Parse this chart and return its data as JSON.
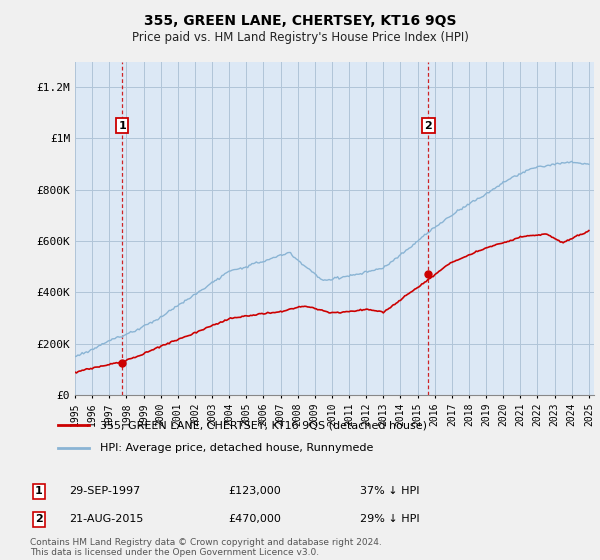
{
  "title": "355, GREEN LANE, CHERTSEY, KT16 9QS",
  "subtitle": "Price paid vs. HM Land Registry's House Price Index (HPI)",
  "ylim": [
    0,
    1300000
  ],
  "yticks": [
    0,
    200000,
    400000,
    600000,
    800000,
    1000000,
    1200000
  ],
  "ytick_labels": [
    "£0",
    "£200K",
    "£400K",
    "£600K",
    "£800K",
    "£1M",
    "£1.2M"
  ],
  "purchase1": {
    "date_label": "29-SEP-1997",
    "year": 1997.75,
    "price": 123000,
    "label": "37% ↓ HPI"
  },
  "purchase2": {
    "date_label": "21-AUG-2015",
    "year": 2015.63,
    "price": 470000,
    "label": "29% ↓ HPI"
  },
  "hpi_color": "#8ab4d4",
  "price_color": "#cc0000",
  "vline_color": "#cc0000",
  "plot_bg_color": "#dce8f5",
  "legend_label1": "355, GREEN LANE, CHERTSEY, KT16 9QS (detached house)",
  "legend_label2": "HPI: Average price, detached house, Runnymede",
  "footer": "Contains HM Land Registry data © Crown copyright and database right 2024.\nThis data is licensed under the Open Government Licence v3.0.",
  "bg_color": "#f0f0f0",
  "grid_color": "#b0c4d8"
}
